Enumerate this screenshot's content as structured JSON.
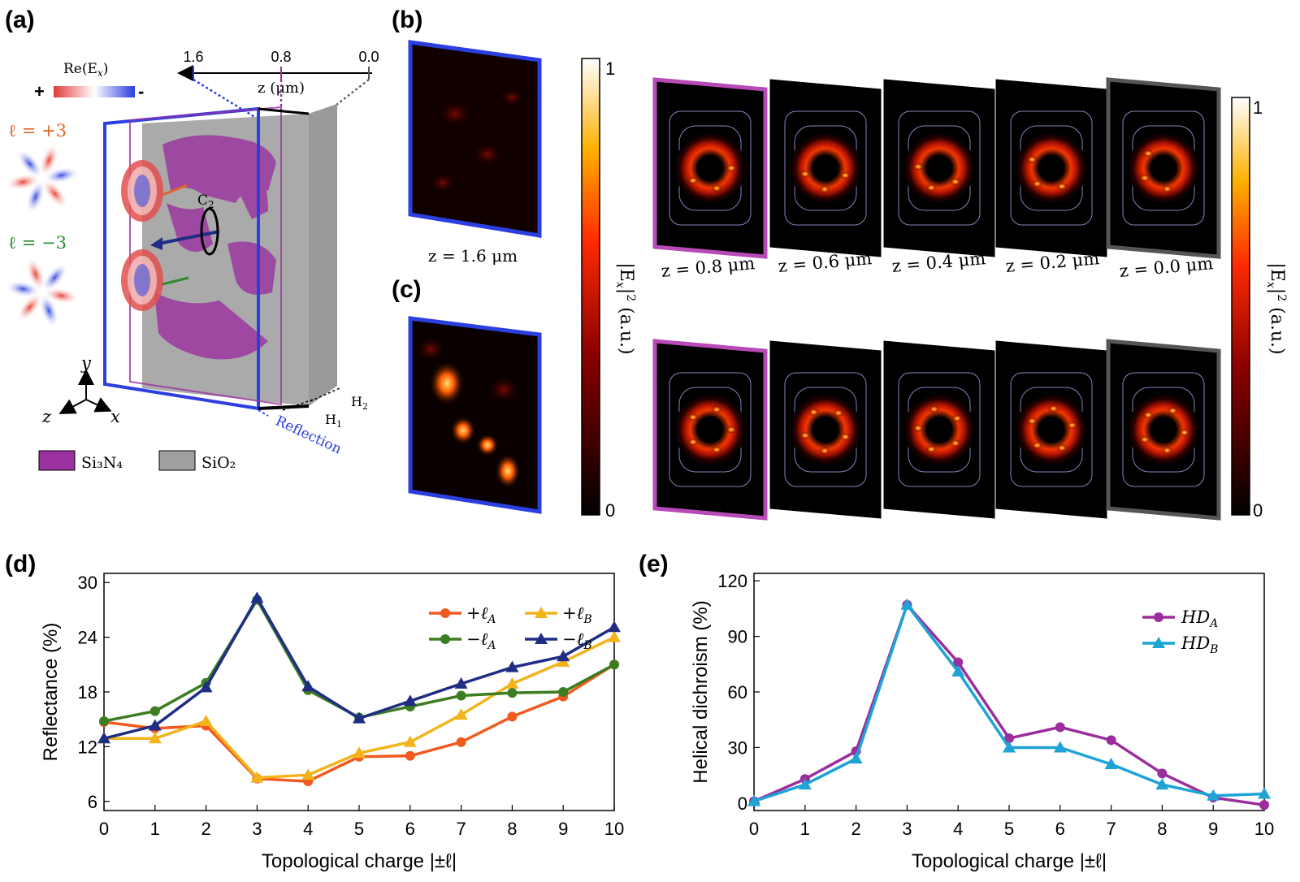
{
  "panels": {
    "a": {
      "label": "(a)",
      "z_axis_ticks": [
        "1.6",
        "0.8",
        "0.0"
      ],
      "z_axis_label": "z (μm)",
      "re_label": "Re(E",
      "re_label_sub": "x",
      "re_label_close": ")",
      "plus": "+",
      "minus": "-",
      "l_pos": "ℓ =  +3",
      "l_neg": "ℓ =  −3",
      "c2": "C",
      "c2_sub": "2",
      "axis_y": "y",
      "axis_z": "z",
      "axis_x": "x",
      "h1": "H",
      "h1_sub": "1",
      "h2": "H",
      "h2_sub": "2",
      "reflection": "Reflection",
      "legend_si3n4": "Si₃N₄",
      "legend_sio2": "SiO₂",
      "colors": {
        "si3n4": "#9b30a0",
        "sio2": "#a0a0a0",
        "reflection": "#2b3fe0",
        "l_pos": "#e2642a",
        "l_neg": "#2e8b2e"
      }
    },
    "b": {
      "label": "(b)",
      "z_reflection": "z = 1.6 μm",
      "colorbar_top": "1",
      "colorbar_bottom": "0",
      "colorbar_label": "|E",
      "colorbar_label_sub": "x",
      "colorbar_label_rest": "|",
      "colorbar_label_sup": "2",
      "colorbar_label_unit": " (a.u.)",
      "slices": [
        "z = 0.8 μm",
        "z = 0.6 μm",
        "z = 0.4 μm",
        "z = 0.2 μm",
        "z = 0.0 μm"
      ]
    },
    "c": {
      "label": "(c)"
    }
  },
  "chart_data": [
    {
      "type": "line",
      "panel_label": "(d)",
      "xlabel": "Topological charge |±ℓ|",
      "ylabel": "Reflectance (%)",
      "x": [
        0,
        1,
        2,
        3,
        4,
        5,
        6,
        7,
        8,
        9,
        10
      ],
      "xlim": [
        0,
        10
      ],
      "ylim": [
        5,
        31
      ],
      "yticks": [
        6,
        12,
        18,
        24,
        30
      ],
      "grid": false,
      "legend_placement": "top-right",
      "series": [
        {
          "name": "+ℓ_A",
          "color": "#f1591f",
          "marker": "circle",
          "values": [
            14.7,
            14.0,
            14.3,
            8.5,
            8.2,
            10.9,
            11.0,
            12.5,
            15.3,
            17.5,
            21.0
          ]
        },
        {
          "name": "+ℓ_B",
          "color": "#f2b41a",
          "marker": "triangle",
          "values": [
            12.9,
            12.9,
            14.8,
            8.6,
            8.9,
            11.3,
            12.5,
            15.5,
            18.9,
            21.3,
            24.0
          ]
        },
        {
          "name": "−ℓ_A",
          "color": "#3c7d22",
          "marker": "circle",
          "values": [
            14.8,
            15.9,
            19.0,
            28.1,
            18.2,
            15.2,
            16.4,
            17.6,
            17.9,
            18.0,
            21.0
          ]
        },
        {
          "name": "−ℓ_B",
          "color": "#1f2e84",
          "marker": "triangle",
          "values": [
            12.9,
            14.3,
            18.5,
            28.3,
            18.6,
            15.1,
            17.0,
            18.9,
            20.7,
            21.9,
            25.1
          ]
        }
      ]
    },
    {
      "type": "line",
      "panel_label": "(e)",
      "xlabel": "Topological charge |±ℓ|",
      "ylabel": "Helical dichroism (%)",
      "x": [
        0,
        1,
        2,
        3,
        4,
        5,
        6,
        7,
        8,
        9,
        10
      ],
      "xlim": [
        0,
        10
      ],
      "ylim": [
        -4,
        124
      ],
      "yticks": [
        0,
        30,
        60,
        90,
        120
      ],
      "grid": false,
      "legend_placement": "top-right",
      "series": [
        {
          "name": "HD_A",
          "color": "#9b2d9c",
          "marker": "circle",
          "values": [
            1,
            13,
            28,
            107,
            76,
            35,
            41,
            34,
            16,
            3,
            -1
          ]
        },
        {
          "name": "HD_B",
          "color": "#1ea3d6",
          "marker": "triangle",
          "values": [
            1,
            10,
            24,
            107,
            71,
            30,
            30,
            21,
            10,
            4,
            5
          ]
        }
      ]
    }
  ]
}
